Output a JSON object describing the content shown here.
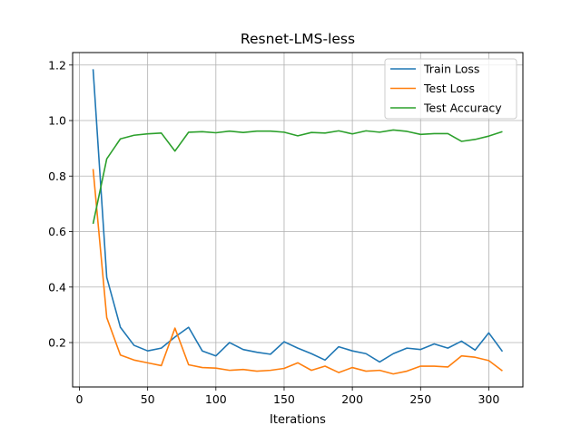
{
  "chart_data": {
    "type": "line",
    "title": "Resnet-LMS-less",
    "xlabel": "Iterations",
    "ylabel": "",
    "xlim": [
      -5,
      325
    ],
    "ylim": [
      0.04,
      1.245
    ],
    "xticks": [
      0,
      50,
      100,
      150,
      200,
      250,
      300
    ],
    "yticks": [
      0.2,
      0.4,
      0.6,
      0.8,
      1.0,
      1.2
    ],
    "ytick_labels": [
      "0.2",
      "0.4",
      "0.6",
      "0.8",
      "1.0",
      "1.2"
    ],
    "grid": true,
    "legend_position": "top-right",
    "x": [
      10,
      20,
      30,
      40,
      50,
      60,
      70,
      80,
      90,
      100,
      110,
      120,
      130,
      140,
      150,
      160,
      170,
      180,
      190,
      200,
      210,
      220,
      230,
      240,
      250,
      260,
      270,
      280,
      290,
      300,
      310
    ],
    "series": [
      {
        "name": "Train Loss",
        "color": "#1f77b4",
        "values": [
          1.185,
          0.435,
          0.255,
          0.19,
          0.17,
          0.18,
          0.22,
          0.255,
          0.17,
          0.152,
          0.2,
          0.175,
          0.165,
          0.158,
          0.203,
          0.18,
          0.16,
          0.137,
          0.185,
          0.17,
          0.16,
          0.13,
          0.16,
          0.18,
          0.175,
          0.195,
          0.18,
          0.205,
          0.173,
          0.235,
          0.168
        ]
      },
      {
        "name": "Test Loss",
        "color": "#ff7f0e",
        "values": [
          0.825,
          0.29,
          0.155,
          0.137,
          0.127,
          0.117,
          0.252,
          0.12,
          0.11,
          0.108,
          0.1,
          0.103,
          0.097,
          0.1,
          0.107,
          0.127,
          0.1,
          0.115,
          0.092,
          0.11,
          0.097,
          0.1,
          0.087,
          0.097,
          0.115,
          0.115,
          0.112,
          0.152,
          0.147,
          0.135,
          0.098
        ]
      },
      {
        "name": "Test Accuracy",
        "color": "#2ca02c",
        "values": [
          0.628,
          0.862,
          0.934,
          0.947,
          0.952,
          0.955,
          0.89,
          0.958,
          0.96,
          0.956,
          0.962,
          0.957,
          0.962,
          0.962,
          0.958,
          0.945,
          0.957,
          0.955,
          0.963,
          0.952,
          0.963,
          0.958,
          0.966,
          0.961,
          0.95,
          0.953,
          0.953,
          0.925,
          0.932,
          0.944,
          0.96
        ]
      }
    ]
  }
}
